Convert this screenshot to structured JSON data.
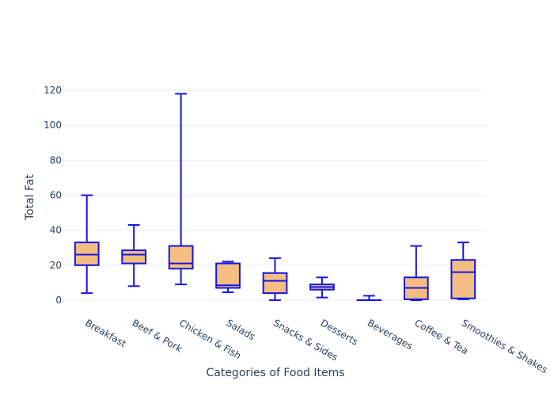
{
  "chart_data": {
    "type": "box",
    "xlabel": "Categories of Food Items",
    "ylabel": "Total Fat",
    "ylim": [
      -5,
      125
    ],
    "yticks": [
      0,
      20,
      40,
      60,
      80,
      100,
      120
    ],
    "grid": true,
    "colors": {
      "box_fill": "#f4be82",
      "box_line": "#1515e6",
      "grid": "#e9edf3",
      "text": "#2a3f5f"
    },
    "categories": [
      "Breakfast",
      "Beef & Pork",
      "Chicken & Fish",
      "Salads",
      "Snacks & Sides",
      "Desserts",
      "Beverages",
      "Coffee & Tea",
      "Smoothies & Shakes"
    ],
    "boxes": [
      {
        "category": "Breakfast",
        "min": 4,
        "q1": 20,
        "median": 26,
        "q3": 33,
        "max": 60
      },
      {
        "category": "Beef & Pork",
        "min": 8,
        "q1": 21,
        "median": 26,
        "q3": 28.5,
        "max": 43
      },
      {
        "category": "Chicken & Fish",
        "min": 9,
        "q1": 18,
        "median": 21,
        "q3": 31,
        "max": 118
      },
      {
        "category": "Salads",
        "min": 4.5,
        "q1": 7,
        "median": 8.5,
        "q3": 21,
        "max": 22
      },
      {
        "category": "Snacks & Sides",
        "min": 0,
        "q1": 4,
        "median": 11,
        "q3": 15.5,
        "max": 24
      },
      {
        "category": "Desserts",
        "min": 1.5,
        "q1": 6,
        "median": 7.5,
        "q3": 9,
        "max": 13
      },
      {
        "category": "Beverages",
        "min": 0,
        "q1": 0,
        "median": 0,
        "q3": 0,
        "max": 2.5
      },
      {
        "category": "Coffee & Tea",
        "min": 0,
        "q1": 0.5,
        "median": 7,
        "q3": 13,
        "max": 31
      },
      {
        "category": "Smoothies & Shakes",
        "min": 0.5,
        "q1": 1,
        "median": 16,
        "q3": 23,
        "max": 33
      }
    ]
  }
}
